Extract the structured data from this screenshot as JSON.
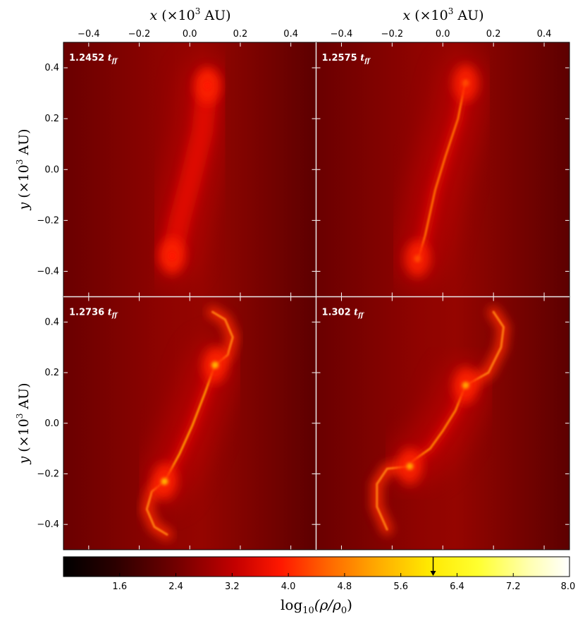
{
  "chart_data": {
    "type": "heatmap",
    "layout": "2x2 panels with shared colorbar",
    "colormap": "hot (black-red-orange-yellow-white)",
    "x_axis": {
      "label": "x (×10^3 AU)",
      "label_italic_part": "x",
      "label_rest": "(×10",
      "label_sup": "3",
      "label_units": " AU)",
      "range": [
        -0.5,
        0.5
      ],
      "ticks": [
        -0.4,
        -0.2,
        0.0,
        0.2,
        0.4
      ],
      "tick_labels": [
        "−0.4",
        "−0.2",
        "0.0",
        "0.2",
        "0.4"
      ],
      "position": "top"
    },
    "y_axis": {
      "label": "y (×10^3 AU)",
      "label_italic_part": "y",
      "label_rest": "(×10",
      "label_sup": "3",
      "label_units": " AU)",
      "range": [
        -0.5,
        0.5
      ],
      "ticks": [
        -0.4,
        -0.2,
        0.0,
        0.2,
        0.4
      ],
      "tick_labels": [
        "−0.4",
        "−0.2",
        "0.0",
        "0.2",
        "0.4"
      ],
      "position": "left"
    },
    "panels": [
      {
        "time_value": "1.2452",
        "time_unit": "t",
        "time_sub": "ff",
        "structure": "diffuse filament",
        "filament": [
          [
            0.07,
            0.34
          ],
          [
            0.05,
            0.15
          ],
          [
            0.0,
            -0.05
          ],
          [
            -0.04,
            -0.2
          ],
          [
            -0.07,
            -0.34
          ]
        ],
        "peaks": [
          {
            "x": 0.07,
            "y": 0.33,
            "level": 3.9
          },
          {
            "x": -0.07,
            "y": -0.34,
            "level": 3.9
          }
        ],
        "filament_level": 3.2
      },
      {
        "time_value": "1.2575",
        "time_unit": "t",
        "time_sub": "ff",
        "structure": "thin tilted filament",
        "filament": [
          [
            0.09,
            0.35
          ],
          [
            0.06,
            0.2
          ],
          [
            0.01,
            0.05
          ],
          [
            -0.03,
            -0.08
          ],
          [
            -0.07,
            -0.26
          ],
          [
            -0.1,
            -0.36
          ]
        ],
        "peaks": [
          {
            "x": 0.09,
            "y": 0.34,
            "level": 4.3
          },
          {
            "x": -0.1,
            "y": -0.35,
            "level": 4.3
          }
        ],
        "filament_level": 4.6
      },
      {
        "time_value": "1.2736",
        "time_unit": "t",
        "time_sub": "ff",
        "structure": "filament with two cores and spiral arms",
        "filament": [
          [
            0.1,
            0.23
          ],
          [
            0.06,
            0.12
          ],
          [
            0.01,
            -0.01
          ],
          [
            -0.04,
            -0.12
          ],
          [
            -0.1,
            -0.23
          ]
        ],
        "peaks": [
          {
            "x": 0.1,
            "y": 0.23,
            "level": 5.4
          },
          {
            "x": -0.1,
            "y": -0.23,
            "level": 5.4
          }
        ],
        "arms": [
          [
            [
              0.1,
              0.23
            ],
            [
              0.15,
              0.27
            ],
            [
              0.17,
              0.34
            ],
            [
              0.14,
              0.41
            ],
            [
              0.09,
              0.44
            ]
          ],
          [
            [
              -0.1,
              -0.23
            ],
            [
              -0.15,
              -0.27
            ],
            [
              -0.17,
              -0.34
            ],
            [
              -0.14,
              -0.41
            ],
            [
              -0.09,
              -0.44
            ]
          ]
        ],
        "filament_level": 5.0
      },
      {
        "time_value": "1.302",
        "time_unit": "t",
        "time_sub": "ff",
        "structure": "fragmented filament with spiral disks",
        "filament": [
          [
            0.09,
            0.15
          ],
          [
            0.05,
            0.05
          ],
          [
            0.0,
            -0.03
          ],
          [
            -0.05,
            -0.1
          ],
          [
            -0.12,
            -0.15
          ]
        ],
        "peaks": [
          {
            "x": 0.09,
            "y": 0.15,
            "level": 5.2
          },
          {
            "x": -0.13,
            "y": -0.17,
            "level": 5.2
          }
        ],
        "arms": [
          [
            [
              0.09,
              0.15
            ],
            [
              0.18,
              0.2
            ],
            [
              0.23,
              0.3
            ],
            [
              0.24,
              0.38
            ],
            [
              0.2,
              0.44
            ]
          ],
          [
            [
              -0.13,
              -0.17
            ],
            [
              -0.22,
              -0.18
            ],
            [
              -0.26,
              -0.24
            ],
            [
              -0.26,
              -0.33
            ],
            [
              -0.22,
              -0.42
            ]
          ]
        ],
        "filament_level": 4.8
      }
    ],
    "colorbar": {
      "label": "log10(ρ/ρ0)",
      "label_prefix": "log",
      "label_sub": "10",
      "label_body": "(ρ/ρ",
      "label_sub2": "0",
      "label_close": ")",
      "range": [
        0.8,
        8.0
      ],
      "ticks": [
        1.6,
        2.4,
        3.2,
        4.0,
        4.8,
        5.6,
        6.4,
        7.2,
        8.0
      ],
      "tick_labels": [
        "1.6",
        "2.4",
        "3.2",
        "4.0",
        "4.8",
        "5.6",
        "6.4",
        "7.2",
        "8.0"
      ],
      "marker_value": 6.06,
      "orientation": "horizontal"
    }
  }
}
